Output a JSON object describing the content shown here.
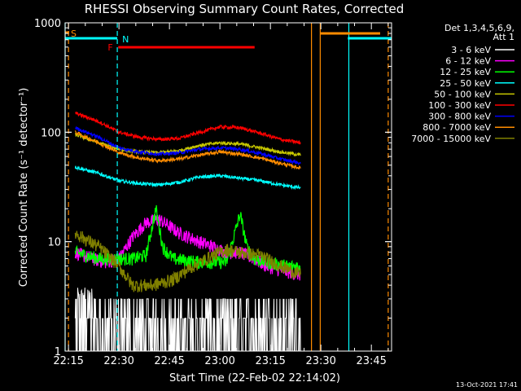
{
  "chart_data": {
    "type": "line",
    "title": "RHESSI Observing Summary Count Rates, Corrected",
    "xlabel": "Start Time (22-Feb-02 22:14:02)",
    "ylabel": "Corrected Count Rate (s⁻¹ detector⁻¹)",
    "x_unit": "minutes since 22:14:02",
    "xlim": [
      0,
      97
    ],
    "ylim": [
      1,
      1000
    ],
    "yscale": "log",
    "x_ticks": [
      "22:15",
      "22:30",
      "22:45",
      "23:00",
      "23:15",
      "23:30",
      "23:45"
    ],
    "x_tick_minutes": [
      1,
      16,
      31,
      46,
      61,
      76,
      91
    ],
    "y_ticks": [
      "1",
      "10",
      "100",
      "1000"
    ],
    "y_tick_values": [
      1,
      10,
      100,
      1000
    ],
    "legend_title": "Det 1,3,4,5,6,9,\n Att 1",
    "legend_position": "right",
    "flag_labels": {
      "saa": "S",
      "night": "N",
      "flare": "F"
    },
    "flags": {
      "saa": [
        {
          "start": 0,
          "end": 1.2
        }
      ],
      "night": [
        {
          "start": -1,
          "end": 15.5
        },
        {
          "start": 84,
          "end": 100
        }
      ],
      "flare": [
        {
          "start": 15.8,
          "end": 56.3
        }
      ]
    },
    "vertical_lines": [
      {
        "x": 0,
        "color": "#00ffff",
        "style": "solid"
      },
      {
        "x": 1,
        "color": "#ff8c00",
        "style": "dashed"
      },
      {
        "x": 15.5,
        "color": "#00ffff",
        "style": "dashed"
      },
      {
        "x": 73.2,
        "color": "#ff8c00",
        "style": "solid"
      },
      {
        "x": 75.8,
        "color": "#ff8c00",
        "style": "solid"
      },
      {
        "x": 84.3,
        "color": "#00ffff",
        "style": "solid"
      },
      {
        "x": 96.0,
        "color": "#ff8c00",
        "style": "dashed"
      }
    ],
    "series": [
      {
        "name": "3 - 6 keV",
        "color": "#ffffff",
        "x": [
          3,
          10,
          20,
          30,
          40,
          50,
          60,
          70
        ],
        "values": [
          2,
          1.5,
          1.5,
          1.5,
          1.5,
          1.5,
          1.5,
          1.5
        ]
      },
      {
        "name": "6 - 12 keV",
        "color": "#ff00ff",
        "x": [
          3,
          8,
          12,
          16,
          20,
          24,
          28,
          34,
          40,
          44,
          48,
          52,
          56,
          60,
          64,
          70
        ],
        "values": [
          8,
          7,
          6.5,
          7,
          11,
          15,
          16,
          12,
          10,
          9,
          8,
          8,
          7,
          6,
          5.5,
          5
        ]
      },
      {
        "name": "12 - 25 keV",
        "color": "#00ff00",
        "x": [
          3,
          10,
          20,
          24,
          27,
          29,
          32,
          40,
          48,
          52,
          54,
          56,
          60,
          66,
          70
        ],
        "values": [
          8,
          7,
          7,
          7.5,
          20,
          9,
          7,
          6.5,
          6.5,
          18,
          9,
          7,
          6.5,
          6,
          6
        ]
      },
      {
        "name": "25 - 50 keV",
        "color": "#00ffff",
        "x": [
          3,
          10,
          16,
          22,
          28,
          34,
          40,
          46,
          52,
          58,
          64,
          70
        ],
        "values": [
          48,
          42,
          36,
          34,
          33,
          35,
          39,
          40,
          38,
          36,
          33,
          31
        ]
      },
      {
        "name": "50 - 100 keV",
        "color": "#c8c800",
        "x": [
          3,
          10,
          16,
          22,
          28,
          34,
          40,
          46,
          52,
          58,
          64,
          70
        ],
        "values": [
          95,
          80,
          70,
          66,
          65,
          68,
          76,
          80,
          78,
          72,
          66,
          62
        ]
      },
      {
        "name": "100 - 300 keV",
        "color": "#ff0000",
        "x": [
          3,
          10,
          16,
          22,
          28,
          34,
          40,
          46,
          52,
          58,
          64,
          70
        ],
        "values": [
          150,
          125,
          100,
          90,
          86,
          88,
          100,
          112,
          110,
          98,
          86,
          80
        ]
      },
      {
        "name": "300 - 800 keV",
        "color": "#0000ff",
        "x": [
          3,
          10,
          16,
          22,
          28,
          34,
          40,
          46,
          52,
          58,
          64,
          70
        ],
        "values": [
          110,
          90,
          72,
          66,
          63,
          65,
          70,
          72,
          70,
          64,
          57,
          52
        ]
      },
      {
        "name": "800 - 7000 keV",
        "color": "#ff8c00",
        "x": [
          3,
          10,
          16,
          22,
          28,
          34,
          40,
          46,
          52,
          58,
          64,
          70
        ],
        "values": [
          100,
          80,
          65,
          58,
          55,
          57,
          62,
          66,
          63,
          58,
          52,
          47
        ]
      },
      {
        "name": "7000 - 15000 keV",
        "color": "#808000",
        "x": [
          3,
          10,
          16,
          20,
          26,
          32,
          38,
          44,
          48,
          52,
          58,
          64,
          70
        ],
        "values": [
          12,
          9,
          6,
          4,
          4,
          4.5,
          6,
          7.5,
          8.5,
          8,
          7.5,
          6,
          5
        ]
      }
    ]
  },
  "footer": {
    "date": "13-Oct-2021 17:41"
  }
}
